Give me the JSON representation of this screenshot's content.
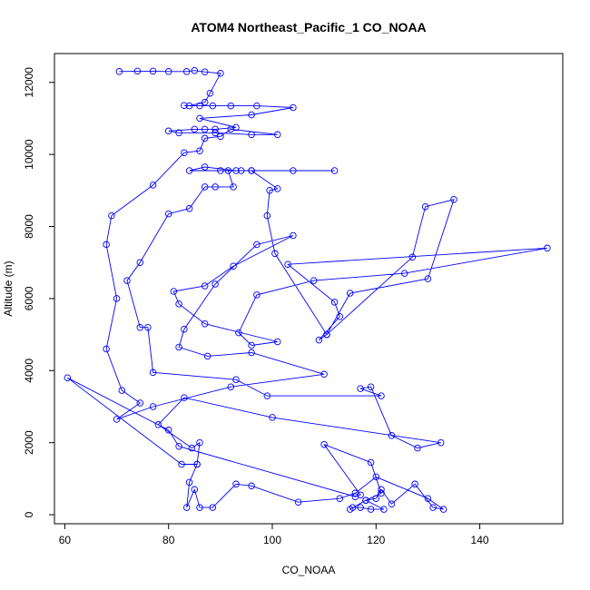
{
  "chart_data": {
    "type": "line",
    "title": "ATOM4 Northeast_Pacific_1 CO_NOAA",
    "xlabel": "CO_NOAA",
    "ylabel": "Altitude (m)",
    "xlim": [
      58,
      156
    ],
    "ylim": [
      -250,
      12800
    ],
    "xticks": [
      60,
      80,
      100,
      120,
      140
    ],
    "yticks": [
      0,
      2000,
      4000,
      6000,
      8000,
      10000,
      12000
    ],
    "color": "#0000ff",
    "markers": "open-circle",
    "grid": false,
    "series": [
      {
        "points": [
          [
            70.5,
            12300
          ],
          [
            74,
            12310
          ],
          [
            77,
            12310
          ],
          [
            80,
            12300
          ],
          [
            83.5,
            12300
          ],
          [
            85,
            12330
          ],
          [
            87,
            12290
          ],
          [
            90,
            12250
          ],
          [
            88,
            11700
          ],
          [
            87,
            11450
          ],
          [
            84,
            11350
          ],
          [
            83,
            11360
          ],
          [
            86,
            11350
          ],
          [
            88.5,
            11350
          ],
          [
            92,
            11350
          ],
          [
            97,
            11350
          ],
          [
            104,
            11300
          ],
          [
            96,
            11100
          ],
          [
            86,
            11000
          ],
          [
            93,
            10750
          ],
          [
            89,
            10700
          ],
          [
            87,
            10700
          ],
          [
            85,
            10700
          ],
          [
            80,
            10650
          ],
          [
            82,
            10600
          ],
          [
            89,
            10600
          ],
          [
            96,
            10550
          ],
          [
            101,
            10550
          ],
          [
            92,
            10700
          ],
          [
            90,
            10500
          ],
          [
            87,
            10450
          ],
          [
            86,
            10100
          ],
          [
            83,
            10050
          ],
          [
            77,
            9150
          ],
          [
            69,
            8300
          ],
          [
            68,
            7500
          ],
          [
            70,
            6000
          ],
          [
            68,
            4600
          ],
          [
            71,
            3450
          ],
          [
            74.5,
            3100
          ],
          [
            70,
            2650
          ],
          [
            77,
            3000
          ],
          [
            92,
            3550
          ],
          [
            110,
            3900
          ],
          [
            96,
            4500
          ],
          [
            87.5,
            4400
          ],
          [
            82,
            4650
          ],
          [
            83,
            5150
          ],
          [
            89,
            6400
          ],
          [
            97,
            7500
          ],
          [
            104,
            7750
          ],
          [
            92.5,
            6900
          ],
          [
            87,
            6350
          ],
          [
            81,
            6200
          ],
          [
            82,
            5850
          ],
          [
            87,
            5300
          ],
          [
            101,
            4800
          ],
          [
            96,
            4700
          ],
          [
            93.5,
            5050
          ],
          [
            97,
            6100
          ],
          [
            108,
            6500
          ],
          [
            125.5,
            6700
          ],
          [
            153,
            7400
          ],
          [
            103,
            6950
          ],
          [
            112,
            5900
          ],
          [
            113,
            5500
          ],
          [
            109,
            4850
          ],
          [
            110.5,
            5000
          ],
          [
            115,
            6150
          ],
          [
            130,
            6550
          ],
          [
            135,
            8750
          ],
          [
            129.5,
            8550
          ],
          [
            127,
            7150
          ],
          [
            110.5,
            5000
          ],
          [
            100.5,
            7250
          ],
          [
            99,
            8300
          ],
          [
            99.5,
            9000
          ],
          [
            101,
            9050
          ],
          [
            96,
            9550
          ],
          [
            93,
            9550
          ],
          [
            87,
            9650
          ],
          [
            84,
            9550
          ],
          [
            90,
            9550
          ],
          [
            96,
            9550
          ],
          [
            104,
            9550
          ],
          [
            112,
            9550
          ],
          [
            94,
            9550
          ],
          [
            91.5,
            9550
          ],
          [
            92.5,
            9100
          ],
          [
            89,
            9100
          ],
          [
            87,
            9100
          ],
          [
            84,
            8500
          ],
          [
            80,
            8350
          ],
          [
            74.5,
            7000
          ],
          [
            72,
            6500
          ],
          [
            74.5,
            5200
          ],
          [
            76,
            5200
          ],
          [
            77,
            3950
          ],
          [
            93,
            3750
          ],
          [
            99,
            3300
          ],
          [
            121,
            3300
          ],
          [
            117,
            3500
          ],
          [
            119,
            3550
          ],
          [
            123,
            2200
          ],
          [
            128,
            1850
          ],
          [
            132.5,
            2000
          ],
          [
            100,
            2700
          ],
          [
            83,
            3250
          ],
          [
            78,
            2500
          ],
          [
            84.5,
            1850
          ],
          [
            86,
            2000
          ],
          [
            85.5,
            1400
          ],
          [
            82.5,
            1400
          ],
          [
            60.5,
            3800
          ],
          [
            80,
            2350
          ],
          [
            82,
            1900
          ],
          [
            116,
            500
          ],
          [
            117,
            550
          ],
          [
            110,
            1950
          ],
          [
            119,
            1450
          ],
          [
            121,
            600
          ],
          [
            118,
            400
          ],
          [
            115,
            150
          ],
          [
            115.5,
            200
          ],
          [
            117,
            200
          ],
          [
            119,
            150
          ],
          [
            121.5,
            150
          ],
          [
            118,
            400
          ],
          [
            120,
            450
          ],
          [
            121,
            700
          ],
          [
            123,
            300
          ],
          [
            127.5,
            850
          ],
          [
            131,
            200
          ],
          [
            133,
            150
          ],
          [
            130,
            450
          ],
          [
            120,
            1050
          ],
          [
            116,
            600
          ],
          [
            113,
            450
          ],
          [
            105,
            350
          ],
          [
            96,
            800
          ],
          [
            93,
            850
          ],
          [
            88.5,
            200
          ],
          [
            86,
            200
          ],
          [
            85,
            700
          ],
          [
            83.5,
            200
          ],
          [
            84,
            900
          ],
          [
            85.5,
            1400
          ]
        ]
      }
    ]
  }
}
